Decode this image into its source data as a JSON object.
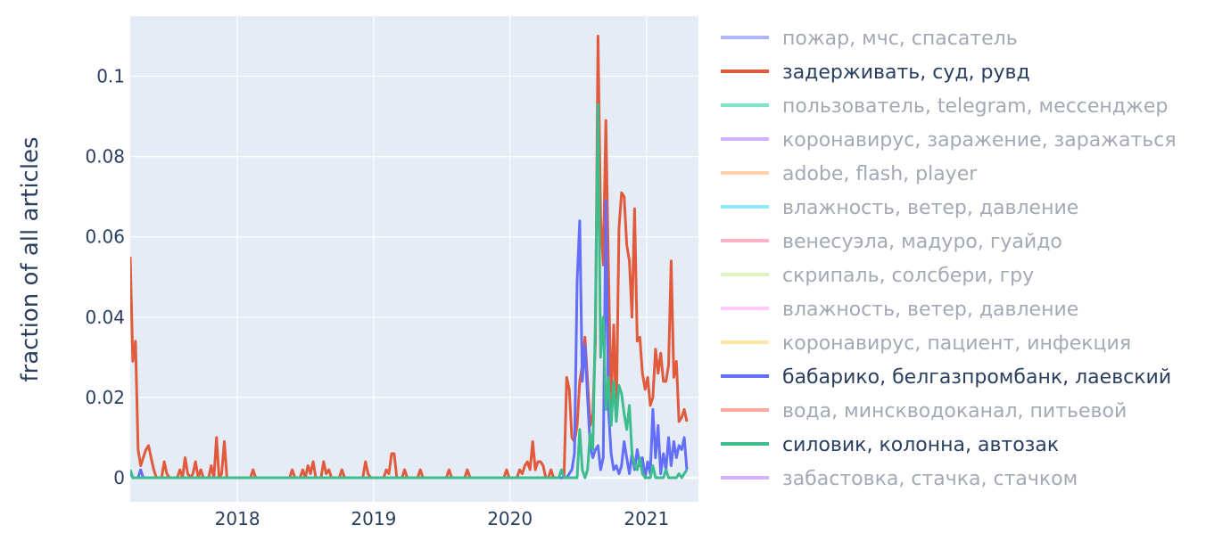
{
  "chart_data": {
    "type": "line",
    "title": "",
    "xlabel": "",
    "ylabel": "fraction of all articles",
    "x_range": [
      "2017-03-20",
      "2021-05-20"
    ],
    "ylim": [
      -0.006,
      0.115
    ],
    "x_ticks": [
      "2018",
      "2019",
      "2020",
      "2021"
    ],
    "y_ticks": [
      {
        "value": 0,
        "label": "0"
      },
      {
        "value": 0.02,
        "label": "0.02"
      },
      {
        "value": 0.04,
        "label": "0.04"
      },
      {
        "value": 0.06,
        "label": "0.06"
      },
      {
        "value": 0.08,
        "label": "0.08"
      },
      {
        "value": 0.1,
        "label": "0.1"
      }
    ],
    "grid": true,
    "legend_position": "right",
    "plot_background": "#e5ecf6",
    "series": [
      {
        "name": "пожар, мчс, спасатель",
        "color": "#636efa",
        "visible": false,
        "points": []
      },
      {
        "name": "задерживать, суд, рувд",
        "color": "#e15a3c",
        "visible": true,
        "points": [
          [
            "2017-03-20",
            0.055
          ],
          [
            "2017-03-27",
            0.029
          ],
          [
            "2017-04-03",
            0.034
          ],
          [
            "2017-04-10",
            0.007
          ],
          [
            "2017-04-17",
            0.003
          ],
          [
            "2017-04-24",
            0.005
          ],
          [
            "2017-05-01",
            0.007
          ],
          [
            "2017-05-08",
            0.008
          ],
          [
            "2017-05-15",
            0.005
          ],
          [
            "2017-05-22",
            0.002
          ],
          [
            "2017-05-29",
            0
          ],
          [
            "2017-06-12",
            0
          ],
          [
            "2017-06-19",
            0.004
          ],
          [
            "2017-06-26",
            0.001
          ],
          [
            "2017-07-03",
            0
          ],
          [
            "2017-07-24",
            0
          ],
          [
            "2017-07-31",
            0.002
          ],
          [
            "2017-08-07",
            0
          ],
          [
            "2017-08-14",
            0.005
          ],
          [
            "2017-08-21",
            0.001
          ],
          [
            "2017-08-28",
            0
          ],
          [
            "2017-09-04",
            0.001
          ],
          [
            "2017-09-11",
            0.004
          ],
          [
            "2017-09-18",
            0
          ],
          [
            "2017-09-25",
            0.002
          ],
          [
            "2017-10-02",
            0
          ],
          [
            "2017-10-16",
            0
          ],
          [
            "2017-10-23",
            0.003
          ],
          [
            "2017-10-30",
            0
          ],
          [
            "2017-11-06",
            0.01
          ],
          [
            "2017-11-13",
            0
          ],
          [
            "2017-11-20",
            0.001
          ],
          [
            "2017-11-27",
            0.009
          ],
          [
            "2017-12-04",
            0
          ],
          [
            "2018-02-05",
            0
          ],
          [
            "2018-02-12",
            0.002
          ],
          [
            "2018-02-19",
            0
          ],
          [
            "2018-05-21",
            0
          ],
          [
            "2018-05-28",
            0.002
          ],
          [
            "2018-06-04",
            0
          ],
          [
            "2018-06-18",
            0
          ],
          [
            "2018-06-25",
            0.002
          ],
          [
            "2018-07-02",
            0
          ],
          [
            "2018-07-09",
            0.003
          ],
          [
            "2018-07-16",
            0.001
          ],
          [
            "2018-07-23",
            0.004
          ],
          [
            "2018-07-30",
            0
          ],
          [
            "2018-08-13",
            0
          ],
          [
            "2018-08-20",
            0.004
          ],
          [
            "2018-08-27",
            0.001
          ],
          [
            "2018-09-03",
            0.002
          ],
          [
            "2018-09-10",
            0
          ],
          [
            "2018-10-01",
            0
          ],
          [
            "2018-10-08",
            0.002
          ],
          [
            "2018-10-15",
            0
          ],
          [
            "2018-12-03",
            0
          ],
          [
            "2018-12-10",
            0.004
          ],
          [
            "2018-12-17",
            0.001
          ],
          [
            "2018-12-24",
            0
          ],
          [
            "2019-01-28",
            0
          ],
          [
            "2019-02-04",
            0.002
          ],
          [
            "2019-02-11",
            0.001
          ],
          [
            "2019-02-18",
            0.006
          ],
          [
            "2019-02-25",
            0.006
          ],
          [
            "2019-03-04",
            0
          ],
          [
            "2019-03-18",
            0
          ],
          [
            "2019-03-25",
            0.002
          ],
          [
            "2019-04-01",
            0
          ],
          [
            "2019-04-29",
            0
          ],
          [
            "2019-05-06",
            0.002
          ],
          [
            "2019-05-13",
            0
          ],
          [
            "2019-07-15",
            0
          ],
          [
            "2019-07-22",
            0.002
          ],
          [
            "2019-07-29",
            0
          ],
          [
            "2019-09-02",
            0
          ],
          [
            "2019-09-09",
            0.002
          ],
          [
            "2019-09-16",
            0
          ],
          [
            "2019-12-16",
            0
          ],
          [
            "2019-12-23",
            0.002
          ],
          [
            "2019-12-30",
            0
          ],
          [
            "2020-01-20",
            0
          ],
          [
            "2020-01-27",
            0.002
          ],
          [
            "2020-02-03",
            0.001
          ],
          [
            "2020-02-10",
            0.003
          ],
          [
            "2020-02-17",
            0.004
          ],
          [
            "2020-02-24",
            0.002
          ],
          [
            "2020-03-02",
            0.009
          ],
          [
            "2020-03-09",
            0.002
          ],
          [
            "2020-03-16",
            0.004
          ],
          [
            "2020-03-23",
            0.004
          ],
          [
            "2020-03-30",
            0.003
          ],
          [
            "2020-04-06",
            0
          ],
          [
            "2020-04-13",
            0
          ],
          [
            "2020-04-20",
            0.002
          ],
          [
            "2020-04-27",
            0
          ],
          [
            "2020-05-25",
            0
          ],
          [
            "2020-06-01",
            0.025
          ],
          [
            "2020-06-08",
            0.022
          ],
          [
            "2020-06-15",
            0.01
          ],
          [
            "2020-06-22",
            0.009
          ],
          [
            "2020-06-29",
            0.013
          ],
          [
            "2020-07-06",
            0.024
          ],
          [
            "2020-07-13",
            0.028
          ],
          [
            "2020-07-20",
            0.035
          ],
          [
            "2020-07-27",
            0.024
          ],
          [
            "2020-08-03",
            0.013
          ],
          [
            "2020-08-10",
            0.016
          ],
          [
            "2020-08-17",
            0.034
          ],
          [
            "2020-08-24",
            0.11
          ],
          [
            "2020-08-31",
            0.065
          ],
          [
            "2020-09-07",
            0.053
          ],
          [
            "2020-09-14",
            0.089
          ],
          [
            "2020-09-21",
            0.052
          ],
          [
            "2020-09-28",
            0.018
          ],
          [
            "2020-10-05",
            0.038
          ],
          [
            "2020-10-12",
            0.015
          ],
          [
            "2020-10-19",
            0.062
          ],
          [
            "2020-10-26",
            0.071
          ],
          [
            "2020-11-02",
            0.07
          ],
          [
            "2020-11-09",
            0.058
          ],
          [
            "2020-11-16",
            0.054
          ],
          [
            "2020-11-23",
            0.04
          ],
          [
            "2020-11-30",
            0.067
          ],
          [
            "2020-12-07",
            0.034
          ],
          [
            "2020-12-14",
            0.035
          ],
          [
            "2020-12-21",
            0.026
          ],
          [
            "2020-12-28",
            0.022
          ],
          [
            "2021-01-04",
            0.025
          ],
          [
            "2021-01-11",
            0.018
          ],
          [
            "2021-01-18",
            0.02
          ],
          [
            "2021-01-25",
            0.032
          ],
          [
            "2021-02-01",
            0.026
          ],
          [
            "2021-02-08",
            0.031
          ],
          [
            "2021-02-15",
            0.024
          ],
          [
            "2021-02-22",
            0.024
          ],
          [
            "2021-03-01",
            0.028
          ],
          [
            "2021-03-08",
            0.054
          ],
          [
            "2021-03-15",
            0.025
          ],
          [
            "2021-03-22",
            0.029
          ],
          [
            "2021-03-29",
            0.014
          ],
          [
            "2021-04-05",
            0.015
          ],
          [
            "2021-04-12",
            0.017
          ],
          [
            "2021-04-19",
            0.014
          ]
        ]
      },
      {
        "name": "пользователь, telegram, мессенджер",
        "color": "#00cc96",
        "visible": false,
        "points": []
      },
      {
        "name": "коронавирус, заражение, заражаться",
        "color": "#ab63fa",
        "visible": false,
        "points": []
      },
      {
        "name": "adobe, flash, player",
        "color": "#ffa15a",
        "visible": false,
        "points": []
      },
      {
        "name": "влажность, ветер, давление",
        "color": "#19d3f3",
        "visible": false,
        "points": []
      },
      {
        "name": "венесуэла, мадуро, гуайдо",
        "color": "#ff6692",
        "visible": false,
        "points": []
      },
      {
        "name": "скрипаль, солсбери, гру",
        "color": "#b6e880",
        "visible": false,
        "points": []
      },
      {
        "name": "влажность, ветер, давление",
        "color": "#ff97ff",
        "visible": false,
        "points": []
      },
      {
        "name": "коронавирус, пациент, инфекция",
        "color": "#fecb52",
        "visible": false,
        "points": []
      },
      {
        "name": "бабарико, белгазпромбанк, лаевский",
        "color": "#636efa",
        "visible": true,
        "points": [
          [
            "2017-03-20",
            0.001
          ],
          [
            "2017-03-27",
            0
          ],
          [
            "2017-04-10",
            0
          ],
          [
            "2017-04-17",
            0.002
          ],
          [
            "2017-04-24",
            0
          ],
          [
            "2020-05-25",
            0
          ],
          [
            "2020-06-01",
            0
          ],
          [
            "2020-06-08",
            0.001
          ],
          [
            "2020-06-15",
            0.002
          ],
          [
            "2020-06-22",
            0.006
          ],
          [
            "2020-06-29",
            0.049
          ],
          [
            "2020-07-06",
            0.064
          ],
          [
            "2020-07-13",
            0.024
          ],
          [
            "2020-07-20",
            0.033
          ],
          [
            "2020-07-27",
            0.02
          ],
          [
            "2020-08-03",
            0.008
          ],
          [
            "2020-08-10",
            0.005
          ],
          [
            "2020-08-17",
            0.007
          ],
          [
            "2020-08-24",
            0.008
          ],
          [
            "2020-08-31",
            0.002
          ],
          [
            "2020-09-07",
            0.005
          ],
          [
            "2020-09-14",
            0.069
          ],
          [
            "2020-09-21",
            0.017
          ],
          [
            "2020-09-28",
            0.006
          ],
          [
            "2020-10-05",
            0.002
          ],
          [
            "2020-10-12",
            0.003
          ],
          [
            "2020-10-19",
            0.001
          ],
          [
            "2020-10-26",
            0.003
          ],
          [
            "2020-11-02",
            0.009
          ],
          [
            "2020-11-09",
            0.005
          ],
          [
            "2020-11-16",
            0.001
          ],
          [
            "2020-11-23",
            0.006
          ],
          [
            "2020-11-30",
            0.002
          ],
          [
            "2020-12-07",
            0.007
          ],
          [
            "2020-12-14",
            0.003
          ],
          [
            "2020-12-21",
            0.005
          ],
          [
            "2020-12-28",
            0
          ],
          [
            "2021-01-04",
            0.004
          ],
          [
            "2021-01-11",
            0.001
          ],
          [
            "2021-01-18",
            0.017
          ],
          [
            "2021-01-25",
            0.005
          ],
          [
            "2021-02-01",
            0.013
          ],
          [
            "2021-02-08",
            0.001
          ],
          [
            "2021-02-15",
            0.006
          ],
          [
            "2021-02-22",
            0.002
          ],
          [
            "2021-03-01",
            0.01
          ],
          [
            "2021-03-08",
            0.003
          ],
          [
            "2021-03-15",
            0.009
          ],
          [
            "2021-03-22",
            0.005
          ],
          [
            "2021-03-29",
            0.008
          ],
          [
            "2021-04-05",
            0.007
          ],
          [
            "2021-04-12",
            0.01
          ],
          [
            "2021-04-19",
            0.002
          ]
        ]
      },
      {
        "name": "вода, минскводоканал, питьевой",
        "color": "#ef553b",
        "visible": false,
        "points": []
      },
      {
        "name": "силовик, колонна, автозак",
        "color": "#3dbd8e",
        "visible": true,
        "points": [
          [
            "2017-03-20",
            0.002
          ],
          [
            "2017-03-27",
            0
          ],
          [
            "2020-05-11",
            0
          ],
          [
            "2020-05-18",
            0.002
          ],
          [
            "2020-05-25",
            0
          ],
          [
            "2020-06-29",
            0
          ],
          [
            "2020-07-06",
            0.012
          ],
          [
            "2020-07-13",
            0.002
          ],
          [
            "2020-07-20",
            0
          ],
          [
            "2020-07-27",
            0.002
          ],
          [
            "2020-08-03",
            0.011
          ],
          [
            "2020-08-10",
            0.007
          ],
          [
            "2020-08-17",
            0.04
          ],
          [
            "2020-08-24",
            0.093
          ],
          [
            "2020-08-31",
            0.03
          ],
          [
            "2020-09-07",
            0.04
          ],
          [
            "2020-09-14",
            0.017
          ],
          [
            "2020-09-21",
            0.025
          ],
          [
            "2020-09-28",
            0.013
          ],
          [
            "2020-10-05",
            0.024
          ],
          [
            "2020-10-12",
            0.014
          ],
          [
            "2020-10-19",
            0.023
          ],
          [
            "2020-10-26",
            0.021
          ],
          [
            "2020-11-02",
            0.016
          ],
          [
            "2020-11-09",
            0.012
          ],
          [
            "2020-11-16",
            0.018
          ],
          [
            "2020-11-23",
            0.006
          ],
          [
            "2020-11-30",
            0.003
          ],
          [
            "2020-12-07",
            0.002
          ],
          [
            "2020-12-14",
            0.005
          ],
          [
            "2020-12-21",
            0.001
          ],
          [
            "2020-12-28",
            0
          ],
          [
            "2021-01-11",
            0
          ],
          [
            "2021-01-18",
            0.003
          ],
          [
            "2021-01-25",
            0
          ],
          [
            "2021-02-15",
            0
          ],
          [
            "2021-02-22",
            0.002
          ],
          [
            "2021-03-01",
            0
          ],
          [
            "2021-03-22",
            0
          ],
          [
            "2021-03-29",
            0.001
          ],
          [
            "2021-04-05",
            0
          ],
          [
            "2021-04-12",
            0.001
          ],
          [
            "2021-04-19",
            0.002
          ]
        ]
      },
      {
        "name": "забастовка, стачка, стачком",
        "color": "#ab63fa",
        "visible": false,
        "points": []
      }
    ]
  }
}
